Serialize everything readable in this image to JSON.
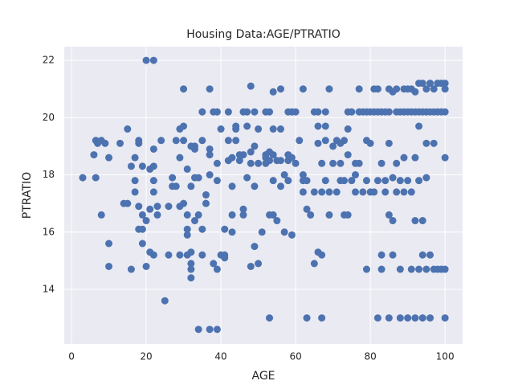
{
  "chart_data": {
    "type": "scatter",
    "title": "Housing Data:AGE/PTRATIO",
    "x_label": "AGE",
    "y_label": "PTRATIO",
    "color": "#4c72b0",
    "xlim": [
      -1.94,
      104.7
    ],
    "ylim": [
      12.09,
      22.48
    ],
    "xticks": [
      0,
      20,
      40,
      60,
      80,
      100
    ],
    "yticks": [
      14,
      16,
      18,
      20,
      22
    ],
    "grid": true,
    "x": [
      3,
      6.5,
      6,
      6.5,
      7,
      8,
      9,
      8,
      10,
      10,
      10,
      13,
      14,
      15,
      15,
      16,
      16,
      17,
      17,
      17,
      18,
      18,
      18,
      18,
      19,
      19,
      19,
      19,
      20,
      20,
      20,
      21,
      21,
      21,
      22,
      22,
      22,
      22,
      22,
      22,
      23,
      23,
      24,
      25,
      26,
      26,
      27,
      27,
      28,
      28,
      29,
      29,
      29,
      29,
      30,
      30,
      30,
      30,
      31,
      31,
      31,
      31,
      31,
      32,
      32,
      32,
      32,
      32,
      32,
      33,
      33,
      33,
      33,
      34,
      34,
      34,
      35,
      35,
      35,
      35,
      36,
      36,
      37,
      37,
      37,
      37,
      37,
      38,
      38,
      39,
      39,
      39,
      39,
      39,
      40,
      40,
      41,
      41,
      41,
      42,
      42,
      42,
      43,
      43,
      43,
      43,
      44,
      44,
      44,
      45,
      45,
      46,
      46,
      46,
      46,
      47,
      47,
      47,
      48,
      48,
      48,
      48,
      49,
      49,
      49,
      49,
      50,
      50,
      50,
      51,
      52,
      52,
      52,
      52,
      53,
      53,
      53,
      53,
      53,
      54,
      54,
      54,
      54,
      54,
      55,
      55,
      56,
      56,
      56,
      56,
      57,
      57,
      58,
      58,
      58,
      58,
      59,
      59,
      59,
      60,
      60,
      61,
      62,
      62,
      62,
      62,
      63,
      63,
      63,
      64,
      65,
      65,
      65,
      66,
      66,
      66,
      66,
      67,
      67,
      67,
      67,
      68,
      68,
      68,
      68,
      69,
      69,
      69,
      70,
      70,
      71,
      71,
      72,
      72,
      72,
      73,
      73,
      73,
      74,
      74,
      74,
      74,
      75,
      75,
      76,
      76,
      76,
      77,
      77,
      77,
      78,
      78,
      79,
      79,
      79,
      79,
      80,
      80,
      80,
      81,
      81,
      81,
      82,
      82,
      82,
      82,
      83,
      83,
      83,
      83,
      84,
      84,
      84,
      85,
      85,
      85,
      85,
      85,
      86,
      86,
      86,
      86,
      87,
      87,
      87,
      87,
      88,
      88,
      88,
      88,
      89,
      89,
      89,
      89,
      90,
      90,
      90,
      90,
      91,
      91,
      91,
      91,
      92,
      92,
      92,
      92,
      92,
      93,
      93,
      93,
      93,
      93,
      94,
      94,
      94,
      94,
      94,
      95,
      95,
      95,
      95,
      95,
      96,
      96,
      96,
      96,
      97,
      97,
      97,
      97,
      98,
      98,
      98,
      99,
      99,
      99,
      100,
      100,
      100,
      100,
      100,
      100
    ],
    "values": [
      17.9,
      17.9,
      18.7,
      19.2,
      19.1,
      19.2,
      19.1,
      16.6,
      15.6,
      14.8,
      18.6,
      19.1,
      17,
      19.6,
      17,
      18.3,
      14.7,
      17.8,
      17.4,
      18.6,
      19.2,
      19.1,
      16.9,
      16.1,
      16.6,
      18.3,
      16.1,
      15.6,
      22,
      16.4,
      14.8,
      18.2,
      16.8,
      15.3,
      18.9,
      22,
      18.3,
      17.8,
      17.4,
      15.2,
      16.6,
      16.9,
      19.2,
      13.6,
      16.9,
      15.2,
      17.6,
      17.9,
      19.2,
      17.6,
      19.6,
      18.6,
      16.9,
      15.2,
      21,
      19.7,
      17,
      19.2,
      15.2,
      16.6,
      16.1,
      15.9,
      18.2,
      19,
      17.6,
      15.3,
      14.7,
      14.4,
      14.9,
      18.9,
      17.9,
      16.4,
      19,
      17.9,
      16.6,
      12.6,
      20.2,
      16.1,
      15.2,
      19.2,
      17.3,
      17,
      21,
      18.9,
      18,
      18.7,
      12.6,
      20.2,
      14.9,
      20.2,
      18.4,
      17.8,
      14.7,
      12.6,
      19.6,
      15.2,
      16.1,
      15.1,
      15.2,
      20.2,
      19.2,
      18.5,
      16.6,
      16,
      17.6,
      18.6,
      19.7,
      19.6,
      19.2,
      18.7,
      18.5,
      20.2,
      16.8,
      16.6,
      18.7,
      20.2,
      19.7,
      17.9,
      21.1,
      18.4,
      18.8,
      14.8,
      20.2,
      19,
      17.6,
      15.5,
      19.6,
      14.9,
      18.4,
      16,
      20.2,
      18.6,
      18.4,
      18.7,
      20.2,
      18.8,
      18.5,
      16.6,
      13,
      20.9,
      19.6,
      18.7,
      17.8,
      16.6,
      18.5,
      16.4,
      21,
      19.6,
      18.5,
      17.6,
      18,
      16,
      20.2,
      18.5,
      17.8,
      18.7,
      20.2,
      18.6,
      15.9,
      20.2,
      18.4,
      19.2,
      21,
      17.8,
      18,
      17.4,
      16.8,
      13,
      17.8,
      16.6,
      20.2,
      14.9,
      17.4,
      19.7,
      20.2,
      19.1,
      15.3,
      15.2,
      13,
      18.4,
      17.4,
      20.2,
      19.7,
      19.2,
      17.8,
      21,
      16.6,
      17.4,
      19,
      18.4,
      19.2,
      17.4,
      18.4,
      17.8,
      19.1,
      19.2,
      16.6,
      17.8,
      20.2,
      19.6,
      18.7,
      16.6,
      20.2,
      17.8,
      18,
      18.4,
      17.4,
      21,
      20.2,
      18.4,
      20.2,
      17.4,
      20.2,
      19.2,
      17.8,
      14.7,
      20.2,
      19.1,
      17.4,
      21,
      20.2,
      17.4,
      21,
      20.2,
      13,
      17.8,
      20.2,
      18.4,
      15.2,
      14.7,
      20.2,
      17.8,
      17.4,
      21,
      20.2,
      19.1,
      16.6,
      13,
      20.9,
      16.4,
      17.9,
      15.2,
      21,
      20.2,
      17.4,
      18.4,
      20.2,
      13,
      17.8,
      14.7,
      21,
      20.2,
      17.4,
      18.6,
      21,
      20.2,
      13,
      17.8,
      21,
      20.2,
      14.7,
      17.4,
      20.9,
      20.2,
      18.6,
      16.4,
      13,
      21.2,
      20.2,
      19.7,
      14.7,
      17.8,
      21.2,
      20.2,
      16.4,
      15.2,
      13,
      21,
      20.2,
      19.1,
      17.9,
      14.7,
      21.2,
      20.2,
      15.2,
      13,
      21,
      20.2,
      19.1,
      14.7,
      21.2,
      20.2,
      14.7,
      21.2,
      20.2,
      14.7,
      21.2,
      21,
      20.2,
      18.6,
      14.7,
      13
    ]
  }
}
